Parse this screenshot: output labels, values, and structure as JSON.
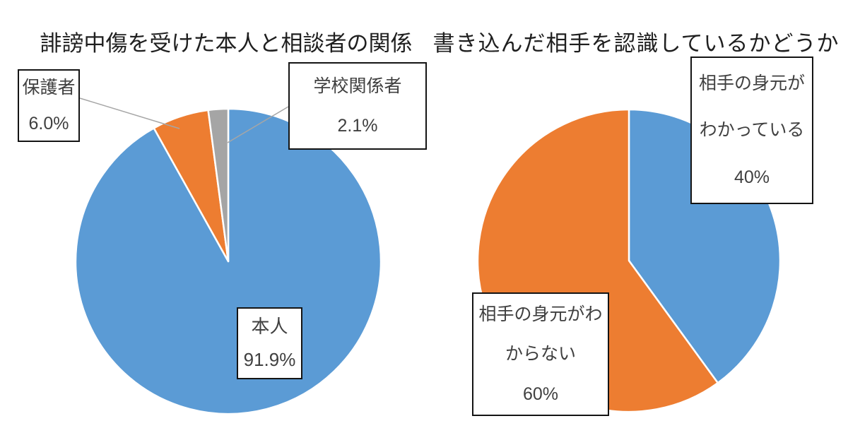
{
  "page": {
    "background_color": "#FFFFFF",
    "text_color_title": "#1F1F1F",
    "text_color_label": "#404040",
    "leader_line_color": "#A6A6A6",
    "slice_border_color": "#FFFFFF"
  },
  "chart_data": [
    {
      "type": "pie",
      "title": "誹謗中傷を受けた本人と相談者の関係",
      "labels": [
        "本人",
        "保護者",
        "学校関係者"
      ],
      "values": [
        91.9,
        6.0,
        2.1
      ],
      "value_labels": [
        "91.9%",
        "6.0%",
        "2.1%"
      ],
      "colors": [
        "#5B9BD5",
        "#ED7D31",
        "#A5A5A5"
      ],
      "start_angle_deg": 0,
      "direction": "clockwise",
      "legend": "none",
      "callouts": [
        {
          "for": "本人",
          "lines": [
            "本人",
            "91.9%"
          ]
        },
        {
          "for": "保護者",
          "lines": [
            "保護者",
            "6.0%"
          ]
        },
        {
          "for": "学校関係者",
          "lines": [
            "学校関係者",
            "2.1%"
          ]
        }
      ]
    },
    {
      "type": "pie",
      "title": "書き込んだ相手を認識しているかどうか",
      "labels": [
        "相手の身元がわかっている",
        "相手の身元がわからない"
      ],
      "values": [
        40,
        60
      ],
      "value_labels": [
        "40%",
        "60%"
      ],
      "colors": [
        "#5B9BD5",
        "#ED7D31"
      ],
      "start_angle_deg": 0,
      "direction": "clockwise",
      "legend": "none",
      "callouts": [
        {
          "for": "相手の身元がわかっている",
          "lines": [
            "相手の身元が",
            "わかっている",
            "40%"
          ]
        },
        {
          "for": "相手の身元がわからない",
          "lines": [
            "相手の身元がわ",
            "からない",
            "60%"
          ]
        }
      ]
    }
  ]
}
